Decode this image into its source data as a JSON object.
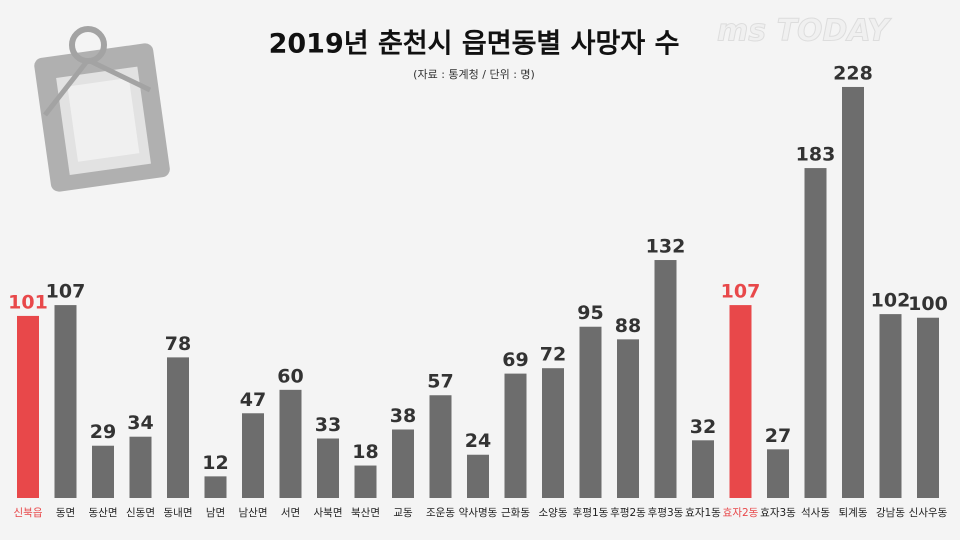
{
  "chart_data": {
    "type": "bar",
    "title": "2019년 춘천시 읍면동별 사망자 수",
    "subtitle": "(자료 : 통계청 / 단위 : 명)",
    "logo": "ms TODAY",
    "categories": [
      "신북읍",
      "동면",
      "동산면",
      "신동면",
      "동내면",
      "남면",
      "남산면",
      "서면",
      "사북면",
      "북산면",
      "교동",
      "조운동",
      "약사명동",
      "근화동",
      "소양동",
      "후평1동",
      "후평2동",
      "후평3동",
      "효자1동",
      "효자2동",
      "효자3동",
      "석사동",
      "퇴계동",
      "강남동",
      "신사우동"
    ],
    "values": [
      101,
      107,
      29,
      34,
      78,
      12,
      47,
      60,
      33,
      18,
      38,
      57,
      24,
      69,
      72,
      95,
      88,
      132,
      32,
      107,
      27,
      183,
      228,
      102,
      100
    ],
    "colors": [
      "#e8484a",
      "#6d6d6d",
      "#6d6d6d",
      "#6d6d6d",
      "#6d6d6d",
      "#6d6d6d",
      "#6d6d6d",
      "#6d6d6d",
      "#6d6d6d",
      "#6d6d6d",
      "#6d6d6d",
      "#6d6d6d",
      "#6d6d6d",
      "#6d6d6d",
      "#6d6d6d",
      "#6d6d6d",
      "#6d6d6d",
      "#6d6d6d",
      "#6d6d6d",
      "#e8484a",
      "#6d6d6d",
      "#6d6d6d",
      "#6d6d6d",
      "#6d6d6d",
      "#6d6d6d"
    ],
    "ylim": [
      0,
      250
    ]
  }
}
